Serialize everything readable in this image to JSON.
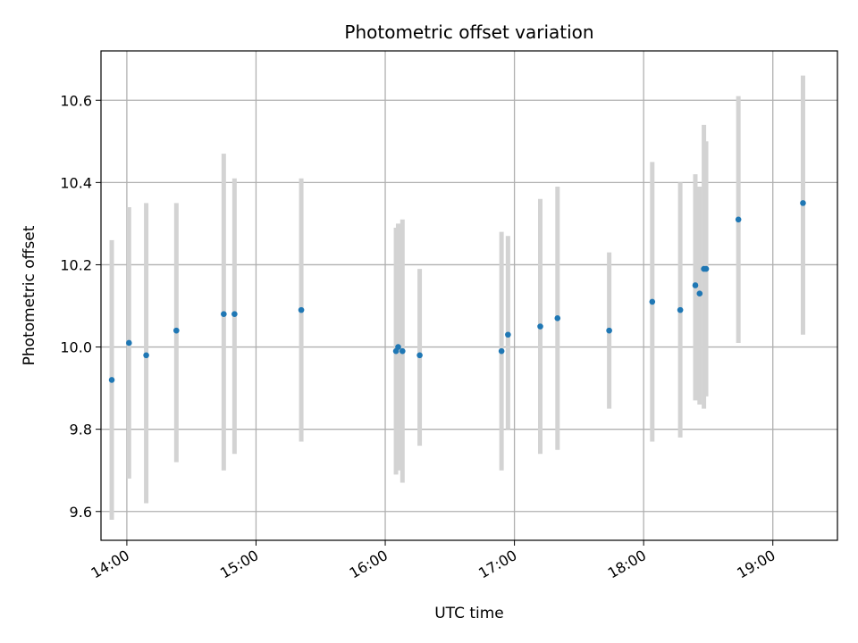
{
  "chart_data": {
    "type": "scatter",
    "title": "Photometric offset variation",
    "xlabel": "UTC time",
    "ylabel": "Photometric offset",
    "x_tick_labels": [
      "14:00",
      "15:00",
      "16:00",
      "17:00",
      "18:00",
      "19:00"
    ],
    "y_tick_labels": [
      "9.6",
      "9.8",
      "10.0",
      "10.2",
      "10.4",
      "10.6"
    ],
    "y_ticks": [
      9.6,
      9.8,
      10.0,
      10.2,
      10.4,
      10.6
    ],
    "x_ticks": [
      "14:00",
      "15:00",
      "16:00",
      "17:00",
      "18:00",
      "19:00"
    ],
    "xlim": [
      "13:48",
      "19:30"
    ],
    "ylim": [
      9.53,
      10.72
    ],
    "grid": true,
    "colors": {
      "point": "#1f77b4",
      "errorbar": "#d3d3d3",
      "grid": "#b0b0b0"
    },
    "points": [
      {
        "x": "13:53",
        "y": 9.92,
        "ylow": 9.58,
        "yhigh": 10.26
      },
      {
        "x": "14:01",
        "y": 10.01,
        "ylow": 9.68,
        "yhigh": 10.34
      },
      {
        "x": "14:09",
        "y": 9.98,
        "ylow": 9.62,
        "yhigh": 10.35
      },
      {
        "x": "14:23",
        "y": 10.04,
        "ylow": 9.72,
        "yhigh": 10.35
      },
      {
        "x": "14:45",
        "y": 10.08,
        "ylow": 9.7,
        "yhigh": 10.47
      },
      {
        "x": "14:50",
        "y": 10.08,
        "ylow": 9.74,
        "yhigh": 10.41
      },
      {
        "x": "15:21",
        "y": 10.09,
        "ylow": 9.77,
        "yhigh": 10.41
      },
      {
        "x": "16:05",
        "y": 9.99,
        "ylow": 9.69,
        "yhigh": 10.29
      },
      {
        "x": "16:06",
        "y": 10.0,
        "ylow": 9.7,
        "yhigh": 10.3
      },
      {
        "x": "16:08",
        "y": 9.99,
        "ylow": 9.67,
        "yhigh": 10.31
      },
      {
        "x": "16:16",
        "y": 9.98,
        "ylow": 9.76,
        "yhigh": 10.19
      },
      {
        "x": "16:54",
        "y": 9.99,
        "ylow": 9.7,
        "yhigh": 10.28
      },
      {
        "x": "16:57",
        "y": 10.03,
        "ylow": 9.8,
        "yhigh": 10.27
      },
      {
        "x": "17:12",
        "y": 10.05,
        "ylow": 9.74,
        "yhigh": 10.36
      },
      {
        "x": "17:20",
        "y": 10.07,
        "ylow": 9.75,
        "yhigh": 10.39
      },
      {
        "x": "17:44",
        "y": 10.04,
        "ylow": 9.85,
        "yhigh": 10.23
      },
      {
        "x": "18:04",
        "y": 10.11,
        "ylow": 9.77,
        "yhigh": 10.45
      },
      {
        "x": "18:17",
        "y": 10.09,
        "ylow": 9.78,
        "yhigh": 10.4
      },
      {
        "x": "18:24",
        "y": 10.15,
        "ylow": 9.87,
        "yhigh": 10.42
      },
      {
        "x": "18:26",
        "y": 10.13,
        "ylow": 9.86,
        "yhigh": 10.39
      },
      {
        "x": "18:28",
        "y": 10.19,
        "ylow": 9.85,
        "yhigh": 10.54
      },
      {
        "x": "18:29",
        "y": 10.19,
        "ylow": 9.88,
        "yhigh": 10.5
      },
      {
        "x": "18:44",
        "y": 10.31,
        "ylow": 10.01,
        "yhigh": 10.61
      },
      {
        "x": "19:14",
        "y": 10.35,
        "ylow": 10.03,
        "yhigh": 10.66
      }
    ]
  }
}
